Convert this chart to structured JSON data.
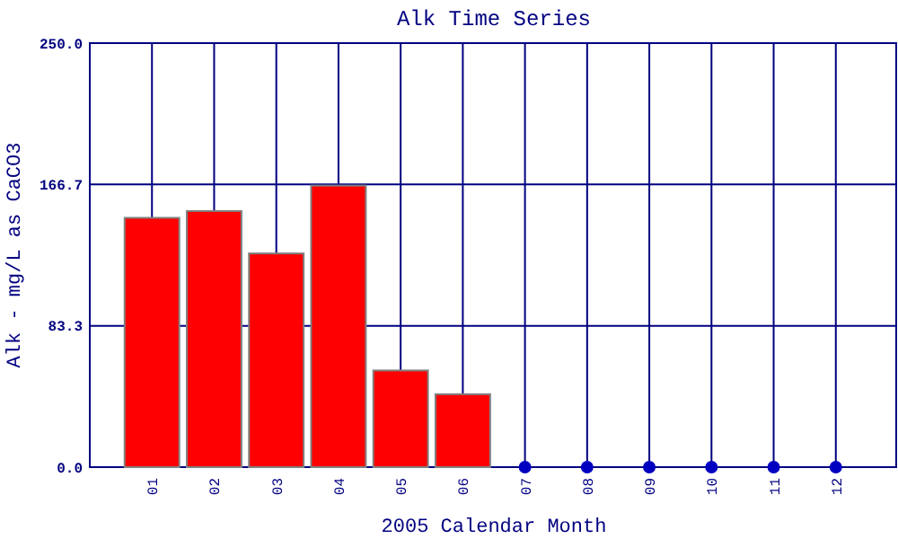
{
  "chart_data": {
    "type": "bar",
    "title": "Alk Time Series",
    "xlabel": "2005 Calendar Month",
    "ylabel": "Alk - mg/L as CaCO3",
    "categories": [
      "01",
      "02",
      "03",
      "04",
      "05",
      "06",
      "07",
      "08",
      "09",
      "10",
      "11",
      "12"
    ],
    "series": [
      {
        "color": "#ff0000",
        "values": [
          147,
          151,
          126,
          166,
          57,
          43,
          null,
          null,
          null,
          null,
          null,
          null
        ]
      },
      {
        "type": "scatter",
        "color": "#0000c0",
        "x": [
          "07",
          "08",
          "09",
          "10",
          "11",
          "12"
        ],
        "values": [
          0,
          0,
          0,
          0,
          0,
          0
        ]
      }
    ],
    "ylim": [
      0,
      250
    ],
    "yticks": [
      {
        "value": 0,
        "label": "0.0"
      },
      {
        "value": 83.3,
        "label": "83.3"
      },
      {
        "value": 166.7,
        "label": "166.7"
      },
      {
        "value": 250,
        "label": "250.0"
      }
    ],
    "grid": true,
    "marker": "circle"
  }
}
